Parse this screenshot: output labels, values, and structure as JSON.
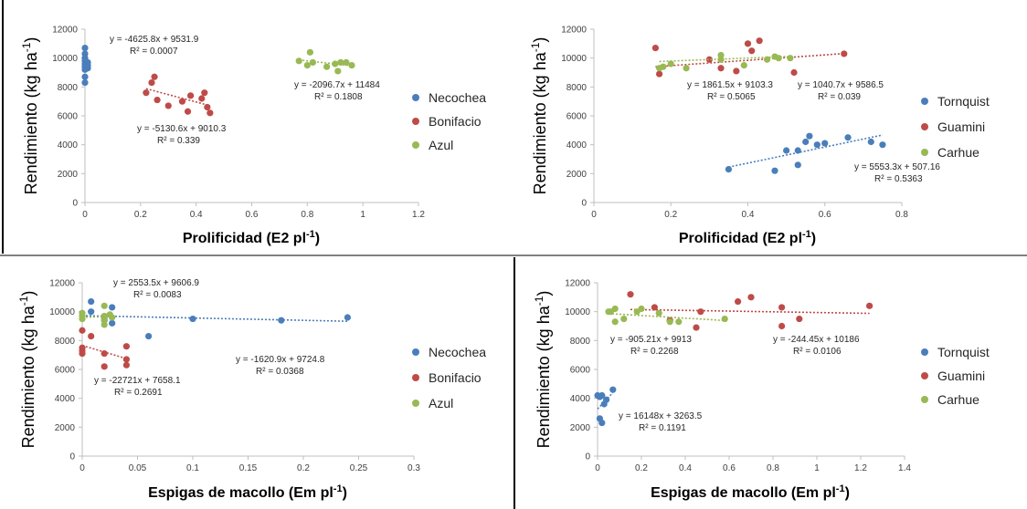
{
  "colors": {
    "blue": "#4a7ebb",
    "red": "#be4b48",
    "green": "#98b954",
    "axis": "#bfbfbf",
    "frame": "#000000"
  },
  "chart_data": [
    {
      "type": "scatter",
      "xlabel": "Prolificidad (E2 pl",
      "xlabel_sup": "-1",
      "xlabel_end": ")",
      "ylabel": "Rendimiento (kg ha",
      "ylabel_sup": "-1",
      "ylabel_end": ")",
      "xlim": [
        0,
        1.2
      ],
      "ylim": [
        0,
        12000
      ],
      "xticks": [
        0,
        0.2,
        0.4,
        0.6,
        0.8,
        1,
        1.2
      ],
      "xtick_labels": [
        "0",
        "0.2",
        "0.4",
        "0.6",
        "0.8",
        "1",
        "1.2"
      ],
      "yticks": [
        0,
        2000,
        4000,
        6000,
        8000,
        10000,
        12000
      ],
      "ytick_labels": [
        "0",
        "2000",
        "4000",
        "6000",
        "8000",
        "10000",
        "12000"
      ],
      "legend": [
        "Necochea",
        "Bonifacio",
        "Azul"
      ],
      "series": [
        {
          "name": "Necochea",
          "color": "blue",
          "points": [
            [
              0,
              10700
            ],
            [
              0,
              10300
            ],
            [
              0,
              10000
            ],
            [
              0,
              9800
            ],
            [
              0,
              9600
            ],
            [
              0,
              9400
            ],
            [
              0,
              9200
            ],
            [
              0,
              8700
            ],
            [
              0,
              8300
            ],
            [
              0.01,
              9700
            ],
            [
              0.01,
              9500
            ],
            [
              0.01,
              9300
            ]
          ],
          "trend": [
            0,
            0.01
          ],
          "equation": "y = -4625.8x + 9531.9",
          "r2": "R² = 0.0007"
        },
        {
          "name": "Bonifacio",
          "color": "red",
          "points": [
            [
              0.22,
              7600
            ],
            [
              0.24,
              8300
            ],
            [
              0.25,
              8700
            ],
            [
              0.26,
              7100
            ],
            [
              0.3,
              6700
            ],
            [
              0.35,
              7000
            ],
            [
              0.37,
              6300
            ],
            [
              0.38,
              7400
            ],
            [
              0.42,
              7200
            ],
            [
              0.43,
              7600
            ],
            [
              0.44,
              6600
            ],
            [
              0.45,
              6200
            ]
          ],
          "trend": [
            0.22,
            0.45
          ],
          "equation": "y = -5130.6x + 9010.3",
          "r2": "R² = 0.339"
        },
        {
          "name": "Azul",
          "color": "green",
          "points": [
            [
              0.77,
              9800
            ],
            [
              0.8,
              9500
            ],
            [
              0.81,
              10400
            ],
            [
              0.82,
              9700
            ],
            [
              0.87,
              9400
            ],
            [
              0.9,
              9600
            ],
            [
              0.91,
              9100
            ],
            [
              0.92,
              9700
            ],
            [
              0.94,
              9700
            ],
            [
              0.96,
              9500
            ]
          ],
          "trend": [
            0.77,
            0.96
          ],
          "equation": "y = -2096.7x + 11484",
          "r2": "R² = 0.1808"
        }
      ]
    },
    {
      "type": "scatter",
      "xlabel": "Prolificidad (E2 pl",
      "xlabel_sup": "-1",
      "xlabel_end": ")",
      "ylabel": "Rendimiento (kg ha",
      "ylabel_sup": "-1",
      "ylabel_end": ")",
      "xlim": [
        0,
        0.8
      ],
      "ylim": [
        0,
        12000
      ],
      "xticks": [
        0,
        0.2,
        0.4,
        0.6,
        0.8
      ],
      "xtick_labels": [
        "0",
        "0.2",
        "0.4",
        "0.6",
        "0.8"
      ],
      "yticks": [
        0,
        2000,
        4000,
        6000,
        8000,
        10000,
        12000
      ],
      "ytick_labels": [
        "0",
        "2000",
        "4000",
        "6000",
        "8000",
        "10000",
        "12000"
      ],
      "legend": [
        "Tornquist",
        "Guamini",
        "Carhue"
      ],
      "series": [
        {
          "name": "Tornquist",
          "color": "blue",
          "points": [
            [
              0.35,
              2300
            ],
            [
              0.47,
              2200
            ],
            [
              0.5,
              3600
            ],
            [
              0.53,
              2600
            ],
            [
              0.53,
              3600
            ],
            [
              0.55,
              4200
            ],
            [
              0.56,
              4600
            ],
            [
              0.58,
              4000
            ],
            [
              0.6,
              4100
            ],
            [
              0.66,
              4500
            ],
            [
              0.72,
              4200
            ],
            [
              0.75,
              4000
            ]
          ],
          "trend": [
            0.35,
            0.75
          ],
          "equation": "y = 5553.3x + 507.16",
          "r2": "R² = 0.5363"
        },
        {
          "name": "Guamini",
          "color": "red",
          "points": [
            [
              0.16,
              10700
            ],
            [
              0.17,
              8900
            ],
            [
              0.3,
              9900
            ],
            [
              0.33,
              9300
            ],
            [
              0.37,
              9100
            ],
            [
              0.4,
              11000
            ],
            [
              0.41,
              10500
            ],
            [
              0.43,
              11200
            ],
            [
              0.52,
              9000
            ],
            [
              0.65,
              10300
            ]
          ],
          "trend": [
            0.16,
            0.65
          ],
          "equation": "y = 1861.5x + 9103.3",
          "r2": "R² = 0.5065"
        },
        {
          "name": "Carhue",
          "color": "green",
          "points": [
            [
              0.17,
              9300
            ],
            [
              0.18,
              9400
            ],
            [
              0.2,
              9600
            ],
            [
              0.24,
              9300
            ],
            [
              0.33,
              10200
            ],
            [
              0.33,
              9900
            ],
            [
              0.39,
              9500
            ],
            [
              0.45,
              9900
            ],
            [
              0.47,
              10100
            ],
            [
              0.48,
              10000
            ],
            [
              0.51,
              10000
            ]
          ],
          "trend": [
            0.17,
            0.51
          ],
          "equation": "y = 1040.7x + 9586.5",
          "r2": "R² = 0.039"
        }
      ]
    },
    {
      "type": "scatter",
      "xlabel": "Espigas de macollo (Em pl",
      "xlabel_sup": "-1",
      "xlabel_end": ")",
      "ylabel": "Rendimiento (kg ha",
      "ylabel_sup": "-1",
      "ylabel_end": ")",
      "xlim": [
        0,
        0.3
      ],
      "ylim": [
        0,
        12000
      ],
      "xticks": [
        0,
        0.05,
        0.1,
        0.15,
        0.2,
        0.25,
        0.3
      ],
      "xtick_labels": [
        "0",
        "0.05",
        "0.1",
        "0.15",
        "0.2",
        "0.25",
        "0.3"
      ],
      "yticks": [
        0,
        2000,
        4000,
        6000,
        8000,
        10000,
        12000
      ],
      "ytick_labels": [
        "0",
        "2000",
        "4000",
        "6000",
        "8000",
        "10000",
        "12000"
      ],
      "legend": [
        "Necochea",
        "Bonifacio",
        "Azul"
      ],
      "series": [
        {
          "name": "Necochea",
          "color": "blue",
          "points": [
            [
              0.008,
              10700
            ],
            [
              0.008,
              10000
            ],
            [
              0.02,
              9600
            ],
            [
              0.02,
              9400
            ],
            [
              0.027,
              10300
            ],
            [
              0.027,
              9200
            ],
            [
              0.06,
              8300
            ],
            [
              0.1,
              9500
            ],
            [
              0.18,
              9400
            ],
            [
              0.24,
              9600
            ]
          ],
          "trend": [
            0,
            0.24
          ],
          "equation": "y = -1620.9x + 9724.8",
          "r2": "R² = 0.0368"
        },
        {
          "name": "Bonifacio",
          "color": "red",
          "points": [
            [
              0,
              7500
            ],
            [
              0,
              7300
            ],
            [
              0,
              7100
            ],
            [
              0,
              8700
            ],
            [
              0.008,
              8300
            ],
            [
              0.02,
              7100
            ],
            [
              0.02,
              6200
            ],
            [
              0.04,
              7600
            ],
            [
              0.04,
              6700
            ],
            [
              0.04,
              6300
            ]
          ],
          "trend": [
            0,
            0.04
          ],
          "equation": "y = -22721x + 7658.1",
          "r2": "R² = 0.2691"
        },
        {
          "name": "Azul",
          "color": "green",
          "points": [
            [
              0,
              9900
            ],
            [
              0,
              9700
            ],
            [
              0,
              9500
            ],
            [
              0.02,
              10400
            ],
            [
              0.02,
              9400
            ],
            [
              0.02,
              9100
            ],
            [
              0.02,
              9700
            ],
            [
              0.025,
              9800
            ],
            [
              0.027,
              9600
            ]
          ],
          "trend": [
            0,
            0.027
          ],
          "equation": "y = 2553.5x + 9606.9",
          "r2": "R² = 0.0083"
        }
      ]
    },
    {
      "type": "scatter",
      "xlabel": "Espigas de macollo (Em pl",
      "xlabel_sup": "-1",
      "xlabel_end": ")",
      "ylabel": "Rendimiento (kg ha",
      "ylabel_sup": "-1",
      "ylabel_end": ")",
      "xlim": [
        0,
        1.4
      ],
      "ylim": [
        0,
        12000
      ],
      "xticks": [
        0,
        0.2,
        0.4,
        0.6,
        0.8,
        1,
        1.2,
        1.4
      ],
      "xtick_labels": [
        "0",
        "0.2",
        "0.4",
        "0.6",
        "0.8",
        "1",
        "1.2",
        "1.4"
      ],
      "yticks": [
        0,
        2000,
        4000,
        6000,
        8000,
        10000,
        12000
      ],
      "ytick_labels": [
        "0",
        "2000",
        "4000",
        "6000",
        "8000",
        "10000",
        "12000"
      ],
      "legend": [
        "Tornquist",
        "Guamini",
        "Carhue"
      ],
      "series": [
        {
          "name": "Tornquist",
          "color": "blue",
          "points": [
            [
              0,
              4200
            ],
            [
              0.01,
              2600
            ],
            [
              0.01,
              4100
            ],
            [
              0.02,
              2300
            ],
            [
              0.02,
              4200
            ],
            [
              0.03,
              3600
            ],
            [
              0.04,
              3900
            ],
            [
              0.07,
              4600
            ]
          ],
          "trend": [
            0,
            0.07
          ],
          "equation": "y = 16148x + 3263.5",
          "r2": "R² = 0.1191"
        },
        {
          "name": "Guamini",
          "color": "red",
          "points": [
            [
              0.15,
              11200
            ],
            [
              0.26,
              10300
            ],
            [
              0.33,
              9400
            ],
            [
              0.45,
              8900
            ],
            [
              0.47,
              10000
            ],
            [
              0.64,
              10700
            ],
            [
              0.7,
              11000
            ],
            [
              0.84,
              10300
            ],
            [
              0.84,
              9000
            ],
            [
              0.92,
              9500
            ],
            [
              1.24,
              10400
            ]
          ],
          "trend": [
            0.15,
            1.24
          ],
          "equation": "y = -244.45x + 10186",
          "r2": "R² = 0.0106"
        },
        {
          "name": "Carhue",
          "color": "green",
          "points": [
            [
              0.05,
              10000
            ],
            [
              0.06,
              10000
            ],
            [
              0.08,
              9300
            ],
            [
              0.08,
              10200
            ],
            [
              0.12,
              9500
            ],
            [
              0.18,
              10000
            ],
            [
              0.2,
              10200
            ],
            [
              0.28,
              9900
            ],
            [
              0.33,
              9300
            ],
            [
              0.37,
              9300
            ],
            [
              0.58,
              9500
            ]
          ],
          "trend": [
            0.05,
            0.58
          ],
          "equation": "y = -905.21x + 9913",
          "r2": "R² = 0.2268"
        }
      ]
    }
  ]
}
